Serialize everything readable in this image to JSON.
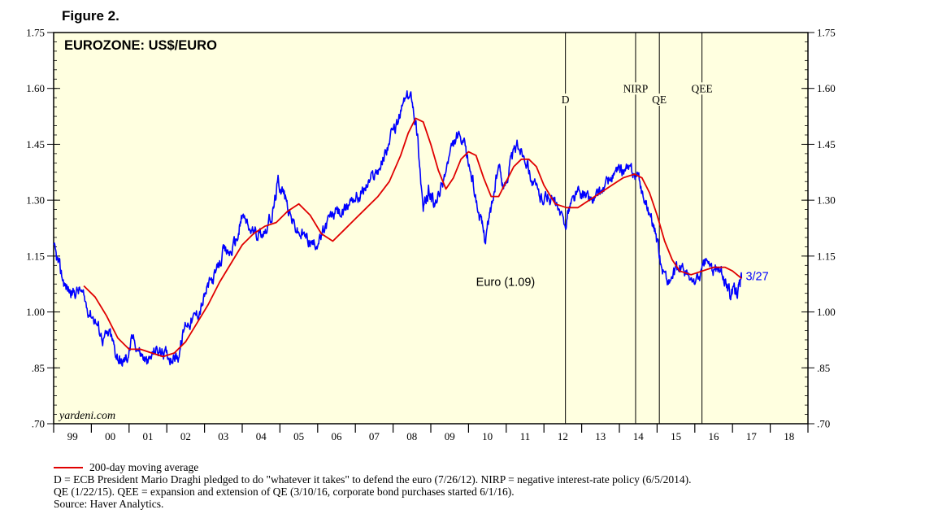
{
  "figure_label": "Figure 2.",
  "chart_data": {
    "type": "line",
    "title": "EUROZONE: US$/EURO",
    "watermark": "yardeni.com",
    "ylim": [
      0.7,
      1.75
    ],
    "y_ticks": [
      1.75,
      1.6,
      1.45,
      1.3,
      1.15,
      1.0,
      0.85,
      0.7
    ],
    "y_tick_labels": [
      "1.75",
      "1.60",
      "1.45",
      "1.30",
      "1.15",
      "1.00",
      ".85",
      ".70"
    ],
    "xlim": [
      1999.0,
      2019.0
    ],
    "x_tick_labels": [
      "99",
      "00",
      "01",
      "02",
      "03",
      "04",
      "05",
      "06",
      "07",
      "08",
      "09",
      "10",
      "11",
      "12",
      "13",
      "14",
      "15",
      "16",
      "17",
      "18"
    ],
    "series": [
      {
        "name": "Euro",
        "color": "#0000ff",
        "x": [
          1999.0,
          1999.15,
          1999.3,
          1999.5,
          1999.7,
          1999.9,
          2000.1,
          2000.3,
          2000.5,
          2000.65,
          2000.8,
          2000.95,
          2001.1,
          2001.3,
          2001.5,
          2001.7,
          2001.9,
          2002.1,
          2002.3,
          2002.5,
          2002.7,
          2002.9,
          2003.1,
          2003.3,
          2003.5,
          2003.7,
          2003.9,
          2004.0,
          2004.2,
          2004.4,
          2004.6,
          2004.8,
          2004.95,
          2005.1,
          2005.3,
          2005.5,
          2005.7,
          2005.9,
          2006.1,
          2006.3,
          2006.5,
          2006.7,
          2006.9,
          2007.1,
          2007.3,
          2007.5,
          2007.7,
          2007.9,
          2008.1,
          2008.3,
          2008.5,
          2008.65,
          2008.8,
          2008.95,
          2009.1,
          2009.3,
          2009.5,
          2009.7,
          2009.9,
          2010.1,
          2010.3,
          2010.45,
          2010.6,
          2010.8,
          2010.95,
          2011.1,
          2011.3,
          2011.5,
          2011.7,
          2011.9,
          2012.1,
          2012.3,
          2012.55,
          2012.7,
          2012.9,
          2013.1,
          2013.3,
          2013.5,
          2013.7,
          2013.9,
          2014.1,
          2014.3,
          2014.5,
          2014.7,
          2014.9,
          2015.1,
          2015.3,
          2015.5,
          2015.7,
          2015.9,
          2016.1,
          2016.3,
          2016.5,
          2016.7,
          2016.9,
          2017.0,
          2017.15,
          2017.24
        ],
        "values": [
          1.17,
          1.12,
          1.07,
          1.05,
          1.06,
          1.01,
          0.98,
          0.93,
          0.94,
          0.89,
          0.86,
          0.88,
          0.93,
          0.89,
          0.86,
          0.9,
          0.89,
          0.88,
          0.88,
          0.97,
          0.98,
          1.01,
          1.07,
          1.1,
          1.16,
          1.16,
          1.21,
          1.26,
          1.22,
          1.21,
          1.22,
          1.26,
          1.35,
          1.32,
          1.25,
          1.21,
          1.2,
          1.18,
          1.2,
          1.25,
          1.27,
          1.26,
          1.31,
          1.31,
          1.34,
          1.37,
          1.4,
          1.46,
          1.5,
          1.57,
          1.58,
          1.47,
          1.27,
          1.33,
          1.28,
          1.34,
          1.42,
          1.47,
          1.44,
          1.36,
          1.25,
          1.2,
          1.28,
          1.39,
          1.33,
          1.4,
          1.45,
          1.42,
          1.35,
          1.31,
          1.31,
          1.29,
          1.23,
          1.29,
          1.32,
          1.31,
          1.3,
          1.32,
          1.35,
          1.37,
          1.38,
          1.38,
          1.36,
          1.29,
          1.24,
          1.13,
          1.08,
          1.11,
          1.12,
          1.08,
          1.09,
          1.14,
          1.11,
          1.11,
          1.06,
          1.05,
          1.06,
          1.09
        ]
      },
      {
        "name": "200-day moving average",
        "color": "#e00000",
        "x": [
          1999.8,
          2000.1,
          2000.4,
          2000.7,
          2001.0,
          2001.3,
          2001.6,
          2001.9,
          2002.2,
          2002.5,
          2002.8,
          2003.1,
          2003.4,
          2003.7,
          2004.0,
          2004.3,
          2004.6,
          2004.9,
          2005.2,
          2005.5,
          2005.8,
          2006.1,
          2006.4,
          2006.7,
          2007.0,
          2007.3,
          2007.6,
          2007.9,
          2008.2,
          2008.4,
          2008.6,
          2008.8,
          2009.0,
          2009.2,
          2009.4,
          2009.6,
          2009.8,
          2010.0,
          2010.2,
          2010.4,
          2010.6,
          2010.8,
          2011.0,
          2011.2,
          2011.4,
          2011.6,
          2011.8,
          2012.0,
          2012.3,
          2012.6,
          2012.9,
          2013.2,
          2013.5,
          2013.8,
          2014.1,
          2014.4,
          2014.6,
          2014.8,
          2015.0,
          2015.2,
          2015.4,
          2015.6,
          2015.9,
          2016.2,
          2016.5,
          2016.8,
          2017.0,
          2017.24
        ],
        "values": [
          1.07,
          1.04,
          0.99,
          0.93,
          0.9,
          0.9,
          0.89,
          0.88,
          0.89,
          0.92,
          0.97,
          1.02,
          1.08,
          1.13,
          1.18,
          1.21,
          1.23,
          1.24,
          1.27,
          1.29,
          1.26,
          1.21,
          1.19,
          1.22,
          1.25,
          1.28,
          1.31,
          1.35,
          1.42,
          1.48,
          1.52,
          1.51,
          1.45,
          1.38,
          1.33,
          1.36,
          1.41,
          1.43,
          1.42,
          1.36,
          1.31,
          1.31,
          1.35,
          1.39,
          1.41,
          1.41,
          1.39,
          1.34,
          1.29,
          1.28,
          1.28,
          1.3,
          1.32,
          1.34,
          1.36,
          1.37,
          1.36,
          1.32,
          1.26,
          1.19,
          1.14,
          1.11,
          1.1,
          1.11,
          1.12,
          1.12,
          1.11,
          1.09
        ]
      }
    ],
    "events": [
      {
        "x": 2012.57,
        "label": "D",
        "label_y": 1.56
      },
      {
        "x": 2014.43,
        "label": "NIRP",
        "label_y": 1.59
      },
      {
        "x": 2015.06,
        "label": "QE",
        "label_y": 1.56
      },
      {
        "x": 2016.19,
        "label": "QEE",
        "label_y": 1.59
      }
    ],
    "annotations": [
      {
        "text": "Euro (1.09)",
        "x": 2010.2,
        "y": 1.07,
        "color": "#0000ff"
      },
      {
        "text": "3/27",
        "x": 2017.35,
        "y": 1.085,
        "color": "#0000ff"
      }
    ]
  },
  "legend": {
    "label": "200-day moving average",
    "color": "#e00000"
  },
  "footnotes": [
    "D = ECB President Mario Draghi pledged to do \"whatever it takes\" to defend the euro (7/26/12). NIRP = negative interest-rate policy (6/5/2014).",
    "QE (1/22/15). QEE = expansion and extension of QE (3/10/16, corporate bond purchases started 6/1/16).",
    "Source: Haver Analytics."
  ]
}
